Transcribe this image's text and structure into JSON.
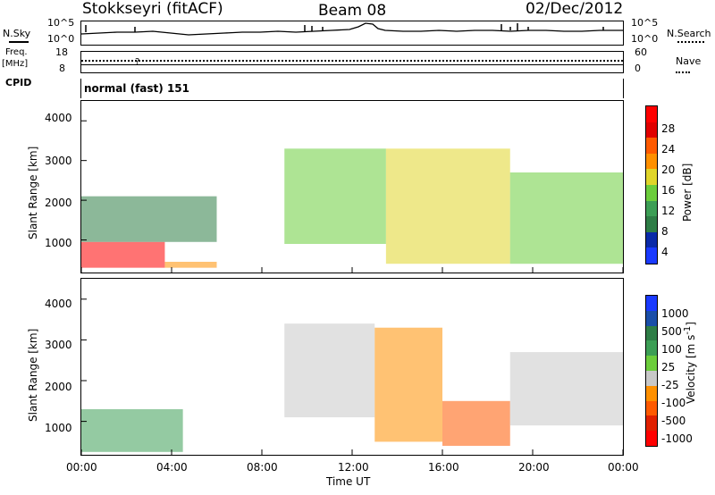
{
  "header": {
    "station": "Stokkseyri (fitACF)",
    "beam": "Beam 08",
    "date": "02/Dec/2012"
  },
  "noise_panel": {
    "left_label": "N.Sky",
    "right_label": "N.Search",
    "left_ticks": [
      "10^5",
      "10^0"
    ],
    "right_ticks": [
      "10^5",
      "10^0"
    ]
  },
  "freq_panel": {
    "left_label_line1": "Freq.",
    "left_label_line2": "[MHz]",
    "left_ticks": [
      "18",
      "8"
    ],
    "right_ticks": [
      "60",
      "0"
    ],
    "right_label": "Nave",
    "cpid_label": "CPID",
    "cpid_value": "normal (fast) 151"
  },
  "colors": {
    "power_scale": [
      "#1a3aff",
      "#0a2aa8",
      "#2e7d46",
      "#3c9e55",
      "#6ccd3c",
      "#e0d52a",
      "#ff9000",
      "#ff5a00",
      "#e00000",
      "#ff0000"
    ],
    "velocity_scale": [
      "#1a3aff",
      "#1a4ea8",
      "#2e7d46",
      "#3c9e55",
      "#6ccd3c",
      "#c8c8c8",
      "#ff9000",
      "#ff5a00",
      "#e02000",
      "#ff0000"
    ]
  },
  "chart_data": [
    {
      "type": "heatmap",
      "title": "",
      "xlabel": "Time UT",
      "ylabel": "Slant Range [km]",
      "ylim": [
        180,
        4500
      ],
      "y_ticks": [
        "4000",
        "3000",
        "2000",
        "1000"
      ],
      "x_ticks": [
        "00:00",
        "04:00",
        "08:00",
        "12:00",
        "16:00",
        "20:00",
        "00:00"
      ],
      "colorbar": {
        "label": "Power [dB]",
        "ticks": [
          "28",
          "24",
          "20",
          "16",
          "12",
          "8",
          "4"
        ],
        "range": [
          0,
          30
        ]
      },
      "regions": [
        {
          "t0": 0.0,
          "t1": 3.7,
          "r0": 300,
          "r1": 950,
          "value": 28
        },
        {
          "t0": 3.7,
          "t1": 6.0,
          "r0": 300,
          "r1": 450,
          "value": 20
        },
        {
          "t0": 0.0,
          "t1": 6.0,
          "r0": 950,
          "r1": 2100,
          "value": 8
        },
        {
          "t0": 9.0,
          "t1": 13.5,
          "r0": 900,
          "r1": 3300,
          "value": 14
        },
        {
          "t0": 13.5,
          "t1": 19.0,
          "r0": 400,
          "r1": 3300,
          "value": 16
        },
        {
          "t0": 19.0,
          "t1": 24.0,
          "r0": 400,
          "r1": 2700,
          "value": 12
        }
      ]
    },
    {
      "type": "heatmap",
      "title": "",
      "xlabel": "Time UT",
      "ylabel": "Slant Range [km]",
      "ylim": [
        180,
        4500
      ],
      "y_ticks": [
        "4000",
        "3000",
        "2000",
        "1000"
      ],
      "x_ticks": [
        "00:00",
        "04:00",
        "08:00",
        "12:00",
        "16:00",
        "20:00",
        "00:00"
      ],
      "colorbar": {
        "label": "Velocity [m s^-1]",
        "ticks": [
          "1000",
          "500",
          "100",
          "25",
          "-25",
          "-100",
          "-500",
          "-1000"
        ]
      },
      "regions": [
        {
          "t0": 0.0,
          "t1": 4.5,
          "r0": 250,
          "r1": 1300,
          "value": 300
        },
        {
          "t0": 9.0,
          "t1": 13.0,
          "r0": 1100,
          "r1": 3400,
          "value": 0
        },
        {
          "t0": 13.0,
          "t1": 16.0,
          "r0": 500,
          "r1": 3300,
          "value": -80
        },
        {
          "t0": 16.0,
          "t1": 19.0,
          "r0": 400,
          "r1": 1500,
          "value": -300
        },
        {
          "t0": 19.0,
          "t1": 24.0,
          "r0": 900,
          "r1": 2700,
          "value": 0
        }
      ]
    }
  ]
}
